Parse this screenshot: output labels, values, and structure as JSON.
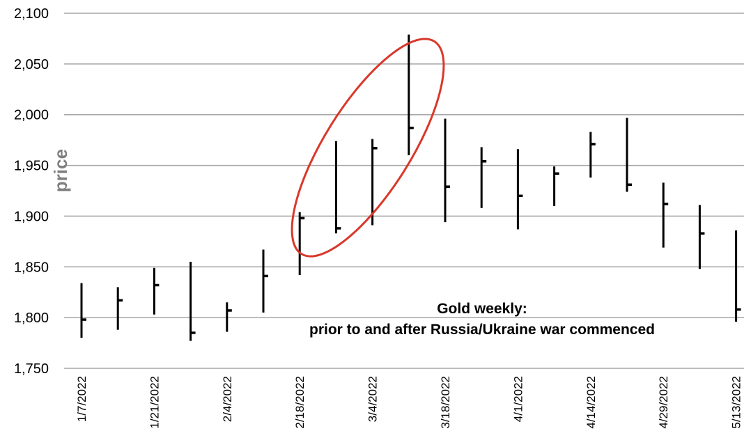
{
  "chart_data": {
    "type": "ohlc",
    "ylabel": "price",
    "ylim": [
      1750,
      2100
    ],
    "y_ticks": [
      "1,750",
      "1,800",
      "1,850",
      "1,900",
      "1,950",
      "2,000",
      "2,050",
      "2,100"
    ],
    "grid": "horizontal",
    "x_tick_labels": [
      "1/7/2022",
      "1/21/2022",
      "2/4/2022",
      "2/18/2022",
      "3/4/2022",
      "3/18/2022",
      "4/1/2022",
      "4/14/2022",
      "4/29/2022",
      "5/13/2022"
    ],
    "series": [
      {
        "bars": [
          {
            "high": 1834,
            "low": 1780,
            "close": 1798
          },
          {
            "high": 1830,
            "low": 1788,
            "close": 1817
          },
          {
            "high": 1849,
            "low": 1803,
            "close": 1832
          },
          {
            "high": 1855,
            "low": 1777,
            "close": 1785
          },
          {
            "high": 1815,
            "low": 1786,
            "close": 1807
          },
          {
            "high": 1867,
            "low": 1805,
            "close": 1841
          },
          {
            "high": 1904,
            "low": 1842,
            "close": 1898
          },
          {
            "high": 1974,
            "low": 1883,
            "close": 1888
          },
          {
            "high": 1976,
            "low": 1891,
            "close": 1967
          },
          {
            "high": 2079,
            "low": 1960,
            "close": 1987
          },
          {
            "high": 1996,
            "low": 1894,
            "close": 1929
          },
          {
            "high": 1968,
            "low": 1908,
            "close": 1954
          },
          {
            "high": 1966,
            "low": 1887,
            "close": 1920
          },
          {
            "high": 1949,
            "low": 1910,
            "close": 1942
          },
          {
            "high": 1983,
            "low": 1938,
            "close": 1971
          },
          {
            "high": 1997,
            "low": 1924,
            "close": 1931
          },
          {
            "high": 1933,
            "low": 1869,
            "close": 1912
          },
          {
            "high": 1911,
            "low": 1848,
            "close": 1883
          },
          {
            "high": 1886,
            "low": 1796,
            "close": 1808
          }
        ]
      }
    ],
    "annotation": {
      "line1": "Gold weekly:",
      "line2": "prior to and after  Russia/Ukraine war commenced"
    },
    "highlight": {
      "shape": "ellipse",
      "color": "#d9382b"
    }
  }
}
